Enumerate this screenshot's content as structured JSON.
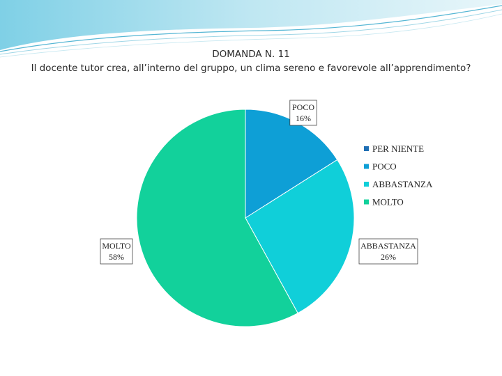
{
  "slide": {
    "title_line1": "DOMANDA N. 11",
    "title_line2": "Il docente tutor crea, all’interno del gruppo, un clima sereno e favorevole all’apprendimento?"
  },
  "chart_data": {
    "type": "pie",
    "title": "",
    "categories": [
      "PER NIENTE",
      "POCO",
      "ABBASTANZA",
      "MOLTO"
    ],
    "values": [
      0,
      16,
      26,
      58
    ],
    "unit": "%",
    "colors": [
      "#1f6fb4",
      "#0e9fd6",
      "#10cfd9",
      "#12d19b"
    ],
    "legend": {
      "position": "right",
      "entries": [
        "PER NIENTE",
        "POCO",
        "ABBASTANZA",
        "MOLTO"
      ]
    },
    "data_labels": [
      {
        "category": "POCO",
        "name": "POCO",
        "value": "16%"
      },
      {
        "category": "ABBASTANZA",
        "name": "ABBASTANZA",
        "value": "26%"
      },
      {
        "category": "MOLTO",
        "name": "MOLTO",
        "value": "58%"
      }
    ]
  }
}
